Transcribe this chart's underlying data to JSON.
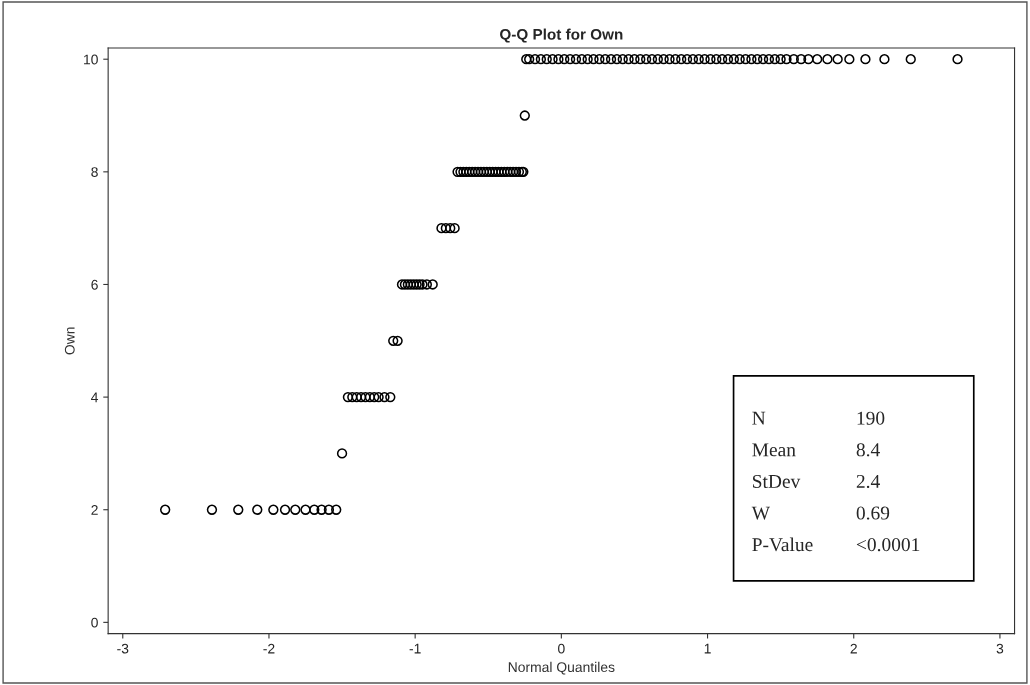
{
  "chart_data": {
    "type": "scatter",
    "title": "Q-Q Plot for Own",
    "xlabel": "Normal Quantiles",
    "ylabel": "Own",
    "xlim": [
      -3.1,
      3.1
    ],
    "ylim": [
      -0.2,
      10.2
    ],
    "xticks": [
      -3,
      -2,
      -1,
      0,
      1,
      2,
      3
    ],
    "yticks": [
      0,
      2,
      4,
      6,
      8,
      10
    ],
    "marker": "circle",
    "grid": false,
    "legend": false,
    "series": [
      {
        "color": "#000000",
        "x": [
          -2.71,
          -2.39,
          -2.21,
          -2.08,
          -1.97,
          -1.89,
          -1.82,
          -1.75,
          -1.69,
          -1.64,
          -1.59,
          -1.54,
          -1.5,
          -1.46,
          -1.43,
          -1.4,
          -1.37,
          -1.34,
          -1.31,
          -1.28,
          -1.25,
          -1.21,
          -1.17,
          -1.15,
          -1.12,
          -1.09,
          -1.07,
          -1.05,
          -1.03,
          -1.01,
          -0.99,
          -0.97,
          -0.95,
          -0.92,
          -0.88,
          -0.82,
          -0.79,
          -0.76,
          -0.73,
          -0.71,
          -0.69,
          -0.67,
          -0.65,
          -0.63,
          -0.61,
          -0.59,
          -0.57,
          -0.55,
          -0.53,
          -0.51,
          -0.49,
          -0.47,
          -0.45,
          -0.43,
          -0.41,
          -0.39,
          -0.37,
          -0.35,
          -0.33,
          -0.31,
          -0.29,
          -0.27,
          -0.26,
          -0.25,
          -0.24,
          -0.22,
          -0.18,
          -0.14,
          -0.1,
          -0.06,
          -0.02,
          0.02,
          0.06,
          0.1,
          0.14,
          0.18,
          0.22,
          0.26,
          0.3,
          0.34,
          0.38,
          0.42,
          0.46,
          0.5,
          0.54,
          0.58,
          0.62,
          0.66,
          0.7,
          0.74,
          0.78,
          0.82,
          0.86,
          0.9,
          0.94,
          0.98,
          1.02,
          1.06,
          1.1,
          1.14,
          1.18,
          1.22,
          1.26,
          1.3,
          1.34,
          1.38,
          1.42,
          1.46,
          1.5,
          1.54,
          1.59,
          1.64,
          1.69,
          1.75,
          1.82,
          1.89,
          1.97,
          2.08,
          2.21,
          2.39,
          2.71
        ],
        "values": [
          2,
          2,
          2,
          2,
          2,
          2,
          2,
          2,
          2,
          2,
          2,
          2,
          3,
          4,
          4,
          4,
          4,
          4,
          4,
          4,
          4,
          4,
          4,
          5,
          5,
          6,
          6,
          6,
          6,
          6,
          6,
          6,
          6,
          6,
          6,
          7,
          7,
          7,
          7,
          8,
          8,
          8,
          8,
          8,
          8,
          8,
          8,
          8,
          8,
          8,
          8,
          8,
          8,
          8,
          8,
          8,
          8,
          8,
          8,
          8,
          8,
          8,
          8,
          9,
          10,
          10,
          10,
          10,
          10,
          10,
          10,
          10,
          10,
          10,
          10,
          10,
          10,
          10,
          10,
          10,
          10,
          10,
          10,
          10,
          10,
          10,
          10,
          10,
          10,
          10,
          10,
          10,
          10,
          10,
          10,
          10,
          10,
          10,
          10,
          10,
          10,
          10,
          10,
          10,
          10,
          10,
          10,
          10,
          10,
          10,
          10,
          10,
          10,
          10,
          10,
          10,
          10,
          10,
          10,
          10,
          10
        ]
      }
    ],
    "annotations": [
      "N",
      "190",
      "Mean",
      "8.4",
      "StDev",
      "2.4",
      "W",
      "0.69",
      "P-Value",
      "<0.0001"
    ]
  }
}
